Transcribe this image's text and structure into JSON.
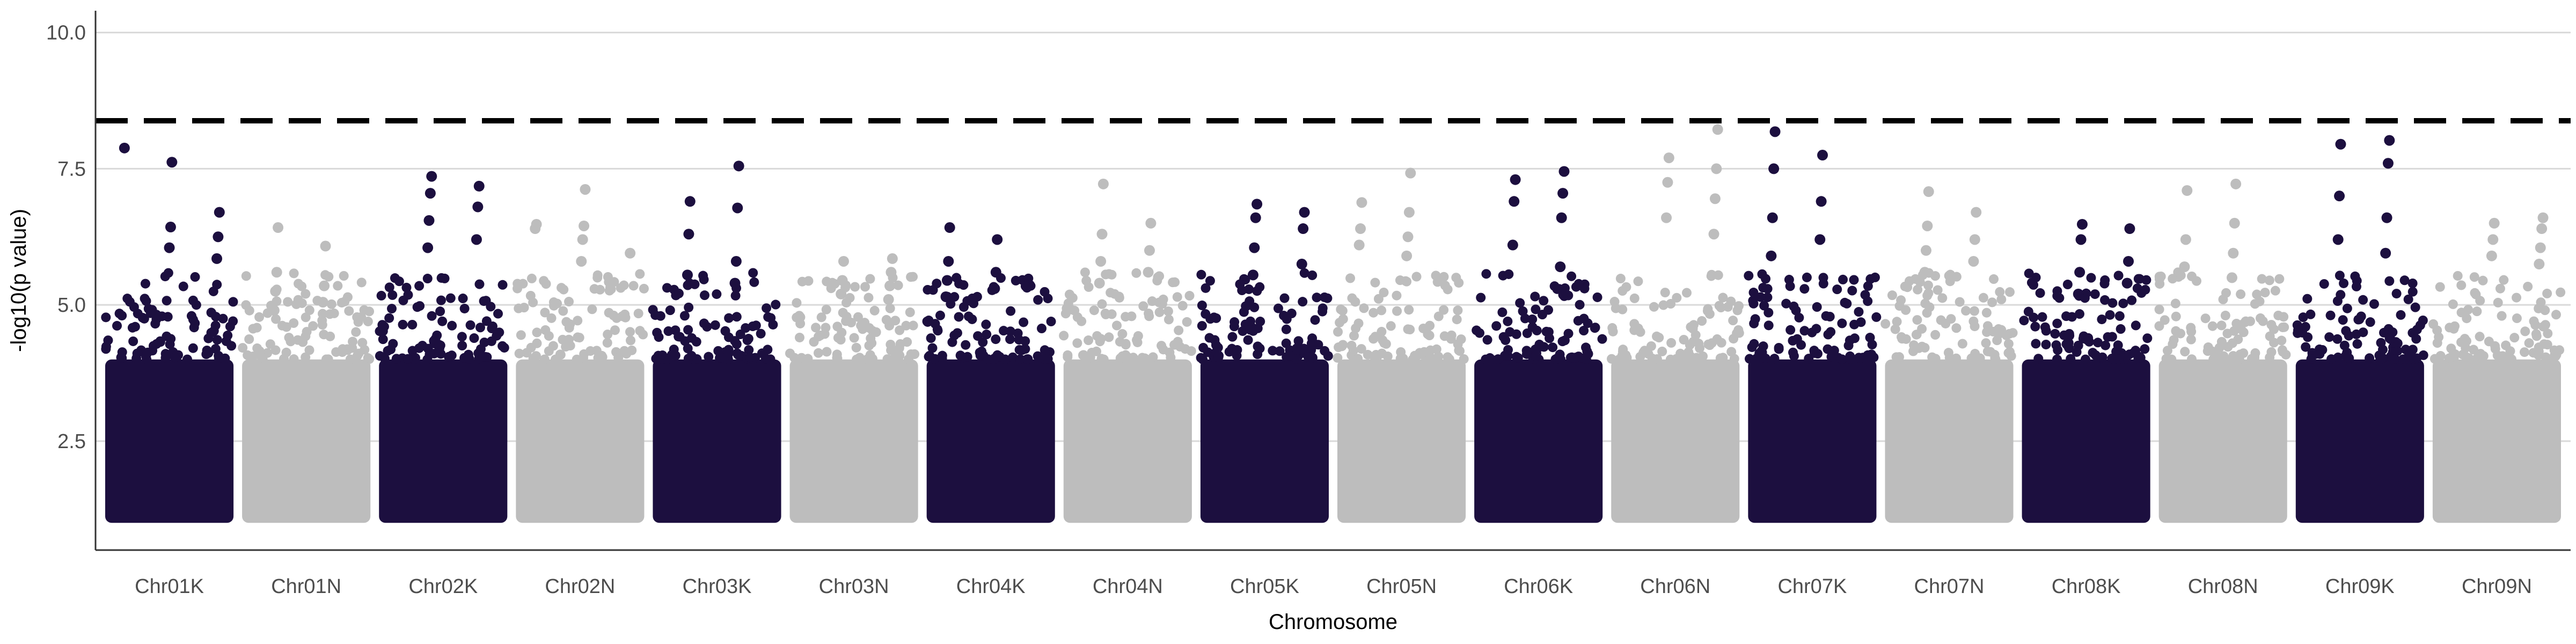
{
  "chart_data": {
    "type": "scatter",
    "title": "",
    "xlabel": "Chromosome",
    "ylabel": "-log10(p value)",
    "ylim": [
      0.5,
      10.4
    ],
    "yticks": [
      2.5,
      5.0,
      7.5,
      10.0
    ],
    "ytick_labels": [
      "2.5",
      "5.0",
      "7.5",
      "10.0"
    ],
    "grid": "horizontal",
    "legend": "none",
    "threshold": 8.38,
    "colors": {
      "dark": "#1c0f3f",
      "light": "#bdbdbd",
      "threshold_line": "#000000",
      "grid": "#d9d9d9",
      "axis": "#333333"
    },
    "categories": [
      "Chr01K",
      "Chr01N",
      "Chr02K",
      "Chr02N",
      "Chr03K",
      "Chr03N",
      "Chr04K",
      "Chr04N",
      "Chr05K",
      "Chr05N",
      "Chr06K",
      "Chr06N",
      "Chr07K",
      "Chr07N",
      "Chr08K",
      "Chr08N",
      "Chr09K",
      "Chr09N"
    ],
    "series": [
      {
        "color_key": "dark",
        "values": [
          7.88,
          7.62,
          6.7,
          6.43,
          6.25,
          6.05,
          5.85
        ]
      },
      {
        "color_key": "light",
        "values": [
          6.42,
          6.08,
          5.6,
          5.35,
          5.25,
          5.05,
          4.9
        ]
      },
      {
        "color_key": "dark",
        "values": [
          7.36,
          7.18,
          7.05,
          6.8,
          6.55,
          6.2,
          6.05
        ]
      },
      {
        "color_key": "light",
        "values": [
          7.12,
          6.48,
          6.45,
          6.4,
          6.2,
          5.95,
          5.8
        ]
      },
      {
        "color_key": "dark",
        "values": [
          7.55,
          6.9,
          6.78,
          6.3,
          5.8,
          5.55,
          5.4
        ]
      },
      {
        "color_key": "light",
        "values": [
          5.85,
          5.8,
          5.6,
          5.45,
          5.35,
          5.2,
          5.1
        ]
      },
      {
        "color_key": "dark",
        "values": [
          6.42,
          6.2,
          5.8,
          5.6,
          5.45,
          5.3,
          5.15
        ]
      },
      {
        "color_key": "light",
        "values": [
          7.22,
          6.5,
          6.3,
          6.0,
          5.8,
          5.6,
          5.4
        ]
      },
      {
        "color_key": "dark",
        "values": [
          6.85,
          6.7,
          6.6,
          6.4,
          6.05,
          5.75,
          5.55
        ]
      },
      {
        "color_key": "light",
        "values": [
          7.42,
          6.88,
          6.7,
          6.4,
          6.25,
          6.1,
          5.9
        ]
      },
      {
        "color_key": "dark",
        "values": [
          7.45,
          7.3,
          7.05,
          6.9,
          6.6,
          6.1,
          5.7
        ]
      },
      {
        "color_key": "light",
        "values": [
          8.22,
          7.7,
          7.5,
          7.25,
          6.95,
          6.6,
          6.3
        ]
      },
      {
        "color_key": "dark",
        "values": [
          8.18,
          7.75,
          7.5,
          6.9,
          6.6,
          6.2,
          5.9
        ]
      },
      {
        "color_key": "light",
        "values": [
          7.08,
          6.7,
          6.45,
          6.2,
          6.0,
          5.8,
          5.6
        ]
      },
      {
        "color_key": "dark",
        "values": [
          6.48,
          6.4,
          6.2,
          5.8,
          5.6,
          5.4,
          5.2
        ]
      },
      {
        "color_key": "light",
        "values": [
          7.22,
          7.1,
          6.5,
          6.2,
          5.95,
          5.7,
          5.5
        ]
      },
      {
        "color_key": "dark",
        "values": [
          8.02,
          7.95,
          7.6,
          7.0,
          6.6,
          6.2,
          5.95
        ]
      },
      {
        "color_key": "light",
        "values": [
          6.6,
          6.5,
          6.4,
          6.2,
          6.05,
          5.9,
          5.75
        ]
      }
    ]
  }
}
